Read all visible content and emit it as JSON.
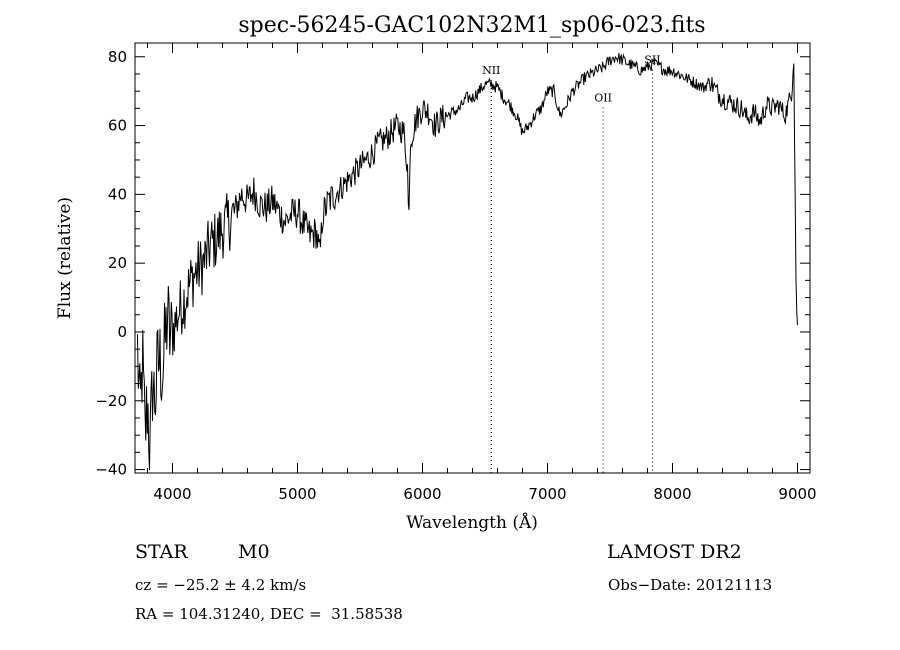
{
  "chart_data": {
    "type": "line",
    "title": "spec-56245-GAC102N32M1_sp06-023.fits",
    "xlabel": "Wavelength (Å)",
    "ylabel": "Flux (relative)",
    "xlim": [
      3700,
      9100
    ],
    "ylim": [
      -41,
      84
    ],
    "x_ticks": [
      4000,
      5000,
      6000,
      7000,
      8000,
      9000
    ],
    "y_ticks": [
      -40,
      -20,
      0,
      20,
      40,
      60,
      80
    ],
    "x_tick_labels": [
      "4000",
      "5000",
      "6000",
      "7000",
      "8000",
      "9000"
    ],
    "y_tick_labels": [
      "−40",
      "−20",
      "0",
      "20",
      "40",
      "60",
      "80"
    ],
    "grid": false,
    "line_color": "#000000",
    "lines": [
      {
        "name": "NII",
        "x": 6550,
        "label_y": 75
      },
      {
        "name": "OII",
        "x": 7445,
        "label_y": 67
      },
      {
        "name": "SII",
        "x": 7840,
        "label_y": 78
      }
    ],
    "series": [
      {
        "x": [
          3720,
          3740,
          3760,
          3780,
          3800,
          3820,
          3840,
          3860,
          3880,
          3900,
          3920,
          3940,
          3960,
          3980,
          4000,
          4050,
          4100,
          4150,
          4200,
          4250,
          4300,
          4350,
          4400,
          4450,
          4500,
          4550,
          4600,
          4650,
          4700,
          4750,
          4800,
          4850,
          4900,
          4950,
          5000,
          5050,
          5100,
          5150,
          5180,
          5200,
          5250,
          5300,
          5350,
          5400,
          5450,
          5500,
          5550,
          5600,
          5650,
          5700,
          5750,
          5800,
          5850,
          5880,
          5890,
          5900,
          5950,
          6000,
          6050,
          6100,
          6150,
          6200,
          6250,
          6300,
          6350,
          6400,
          6450,
          6500,
          6550,
          6600,
          6650,
          6700,
          6750,
          6800,
          6850,
          6900,
          6950,
          7000,
          7050,
          7100,
          7150,
          7200,
          7250,
          7300,
          7350,
          7400,
          7450,
          7500,
          7550,
          7600,
          7650,
          7700,
          7750,
          7800,
          7850,
          7900,
          7950,
          8000,
          8050,
          8100,
          8150,
          8200,
          8250,
          8300,
          8350,
          8400,
          8450,
          8500,
          8550,
          8600,
          8650,
          8700,
          8750,
          8800,
          8850,
          8900,
          8950,
          8970,
          8990,
          9000
        ],
        "y": [
          -5,
          -25,
          -8,
          -30,
          -20,
          -35,
          -15,
          -20,
          -10,
          -8,
          -12,
          -3,
          5,
          -2,
          0,
          6,
          10,
          15,
          18,
          20,
          25,
          27,
          30,
          32,
          35,
          40,
          38,
          41,
          37,
          36,
          38,
          35,
          32,
          34,
          35,
          31,
          28,
          29,
          22,
          34,
          38,
          40,
          42,
          44,
          46,
          48,
          50,
          52,
          55,
          56,
          58,
          60,
          58,
          48,
          29,
          55,
          62,
          65,
          64,
          60,
          62,
          63,
          64,
          65,
          68,
          68,
          70,
          72,
          72,
          71,
          68,
          66,
          63,
          58,
          60,
          63,
          65,
          70,
          70,
          63,
          66,
          70,
          72,
          74,
          75,
          76,
          77,
          79,
          80,
          79,
          78,
          77,
          76,
          77,
          78,
          77,
          76,
          76,
          75,
          74,
          73,
          72,
          71,
          73,
          70,
          68,
          67,
          66,
          65,
          62,
          64,
          61,
          66,
          65,
          66,
          63,
          69,
          78,
          8,
          2
        ]
      }
    ]
  },
  "info": {
    "object_class": "STAR",
    "subclass": "M0",
    "survey": "LAMOST DR2",
    "redshift": "cz = −25.2 ± 4.2 km/s",
    "obs_date": "Obs−Date: 20121113",
    "coordinates": "RA = 104.31240, DEC =  31.58538"
  }
}
